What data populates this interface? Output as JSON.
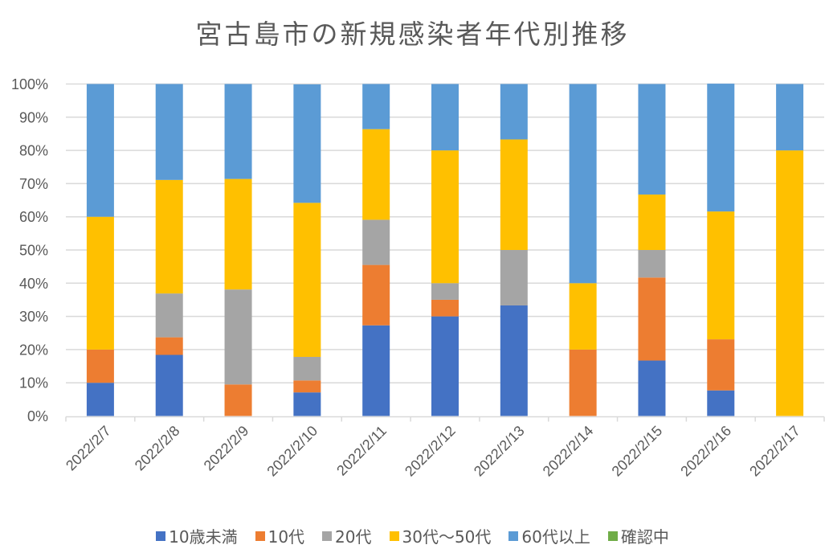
{
  "chart_data": {
    "type": "bar",
    "stacked": "percent",
    "title": "宮古島市の新規感染者年代別推移",
    "xlabel": "",
    "ylabel": "",
    "ylim": [
      0,
      1
    ],
    "yticks": [
      "0%",
      "10%",
      "20%",
      "30%",
      "40%",
      "50%",
      "60%",
      "70%",
      "80%",
      "90%",
      "100%"
    ],
    "grid": true,
    "legend_position": "bottom",
    "categories": [
      "2022/2/7",
      "2022/2/8",
      "2022/2/9",
      "2022/2/10",
      "2022/2/11",
      "2022/2/12",
      "2022/2/13",
      "2022/2/14",
      "2022/2/15",
      "2022/2/16",
      "2022/2/17"
    ],
    "series": [
      {
        "name": "10歳未満",
        "color": "#4472C4",
        "values": [
          0.1,
          0.184,
          0.0,
          0.071,
          0.273,
          0.3,
          0.333,
          0.0,
          0.167,
          0.077,
          0.0
        ]
      },
      {
        "name": "10代",
        "color": "#ED7D31",
        "values": [
          0.1,
          0.053,
          0.095,
          0.036,
          0.182,
          0.05,
          0.0,
          0.2,
          0.25,
          0.154,
          0.0
        ]
      },
      {
        "name": "20代",
        "color": "#A5A5A5",
        "values": [
          0.0,
          0.132,
          0.286,
          0.071,
          0.136,
          0.05,
          0.167,
          0.0,
          0.083,
          0.0,
          0.0
        ]
      },
      {
        "name": "30代～50代",
        "color": "#FFC000",
        "values": [
          0.4,
          0.342,
          0.333,
          0.464,
          0.273,
          0.4,
          0.333,
          0.2,
          0.167,
          0.385,
          0.8
        ]
      },
      {
        "name": "60代以上",
        "color": "#5B9BD5",
        "values": [
          0.4,
          0.289,
          0.286,
          0.357,
          0.136,
          0.2,
          0.167,
          0.6,
          0.333,
          0.385,
          0.2
        ]
      },
      {
        "name": "確認中",
        "color": "#70AD47",
        "values": [
          0,
          0,
          0,
          0,
          0,
          0,
          0,
          0,
          0,
          0,
          0
        ]
      }
    ]
  },
  "colors": {
    "gridline": "#D9D9D9",
    "axis_text": "#595959"
  }
}
